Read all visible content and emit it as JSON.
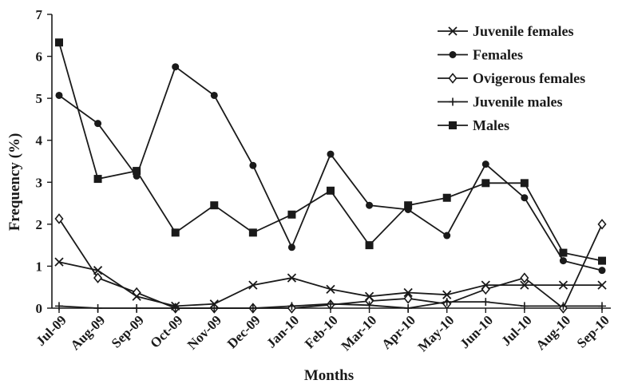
{
  "chart_data": {
    "type": "line",
    "xlabel": "Months",
    "ylabel": "Frequency (%)",
    "ylim": [
      0,
      7
    ],
    "yticks": [
      0,
      1,
      2,
      3,
      4,
      5,
      6,
      7
    ],
    "grid": false,
    "legend_position": "top-right",
    "categories": [
      "Jul-09",
      "Aug-09",
      "Sep-09",
      "Oct-09",
      "Nov-09",
      "Dec-09",
      "Jan-10",
      "Feb-10",
      "Mar-10",
      "Apr-10",
      "May-10",
      "Jun-10",
      "Jul-10",
      "Aug-10",
      "Sep-10"
    ],
    "series": [
      {
        "name": "Juvenile females",
        "marker": "x",
        "values": [
          1.1,
          0.9,
          0.28,
          0.05,
          0.1,
          0.55,
          0.72,
          0.45,
          0.28,
          0.37,
          0.32,
          0.55,
          0.55,
          0.55,
          0.55
        ]
      },
      {
        "name": "Females",
        "marker": "circle",
        "values": [
          5.07,
          4.4,
          3.15,
          5.75,
          5.07,
          3.4,
          1.45,
          3.67,
          2.45,
          2.35,
          1.73,
          3.43,
          2.63,
          1.13,
          0.9
        ]
      },
      {
        "name": "Ovigerous females",
        "marker": "diamond",
        "values": [
          2.13,
          0.72,
          0.37,
          0.0,
          0.0,
          0.0,
          0.0,
          0.08,
          0.17,
          0.23,
          0.1,
          0.45,
          0.72,
          0.0,
          2.0
        ]
      },
      {
        "name": "Juvenile males",
        "marker": "plus",
        "values": [
          0.05,
          0.0,
          0.0,
          0.0,
          0.0,
          0.0,
          0.05,
          0.1,
          0.07,
          0.0,
          0.15,
          0.15,
          0.05,
          0.05,
          0.05
        ]
      },
      {
        "name": "Males",
        "marker": "square",
        "values": [
          6.33,
          3.08,
          3.27,
          1.8,
          2.45,
          1.8,
          2.23,
          2.8,
          1.5,
          2.45,
          2.63,
          2.98,
          2.98,
          1.32,
          1.13
        ]
      }
    ]
  }
}
